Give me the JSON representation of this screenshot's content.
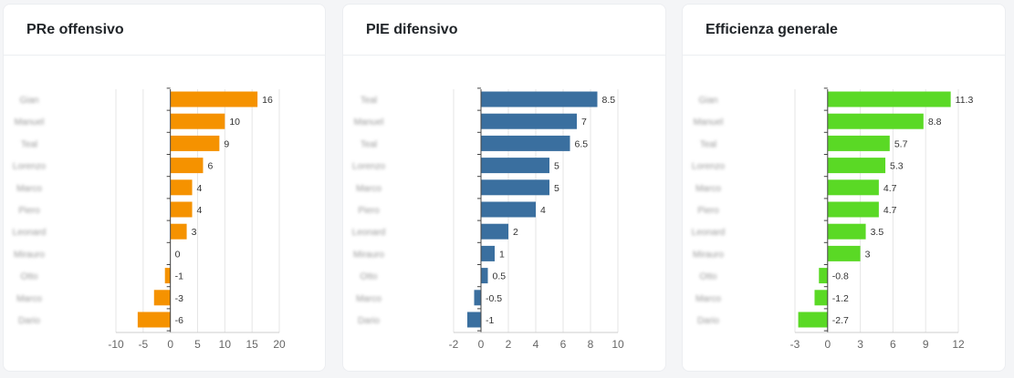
{
  "chart_data": [
    {
      "type": "bar",
      "orientation": "horizontal",
      "title": "PRe offensivo",
      "color": "#f59200",
      "categories": [
        "Gian",
        "Manuel",
        "Teal",
        "Lorenzo",
        "Marco",
        "Piero",
        "Leonard",
        "Mirauro",
        "Otto",
        "Marco",
        "Dario"
      ],
      "values": [
        16,
        10,
        9,
        6,
        4,
        4,
        3,
        0,
        -1,
        -3,
        -6
      ],
      "xlim": [
        -10,
        20
      ],
      "xticks": [
        -10,
        -5,
        0,
        5,
        10,
        15,
        20
      ],
      "grid": true
    },
    {
      "type": "bar",
      "orientation": "horizontal",
      "title": "PIE difensivo",
      "color": "#3a6f9f",
      "categories": [
        "Teal",
        "Manuel",
        "Teal",
        "Lorenzo",
        "Marco",
        "Piero",
        "Leonard",
        "Mirauro",
        "Otto",
        "Marco",
        "Dario"
      ],
      "values": [
        8.5,
        7,
        6.5,
        5,
        5,
        4,
        2,
        1,
        0.5,
        -0.5,
        -1
      ],
      "xlim": [
        -2,
        10
      ],
      "xticks": [
        -2,
        0,
        2,
        4,
        6,
        8,
        10
      ],
      "grid": true
    },
    {
      "type": "bar",
      "orientation": "horizontal",
      "title": "Efficienza generale",
      "color": "#5ad925",
      "categories": [
        "Gian",
        "Manuel",
        "Teal",
        "Lorenzo",
        "Marco",
        "Piero",
        "Leonard",
        "Mirauro",
        "Otto",
        "Marco",
        "Dario"
      ],
      "values": [
        11.3,
        8.8,
        5.7,
        5.3,
        4.7,
        4.7,
        3.5,
        3,
        -0.8,
        -1.2,
        -2.7
      ],
      "xlim": [
        -3,
        12
      ],
      "xticks": [
        -3,
        0,
        3,
        6,
        9,
        12
      ],
      "grid": true
    }
  ]
}
